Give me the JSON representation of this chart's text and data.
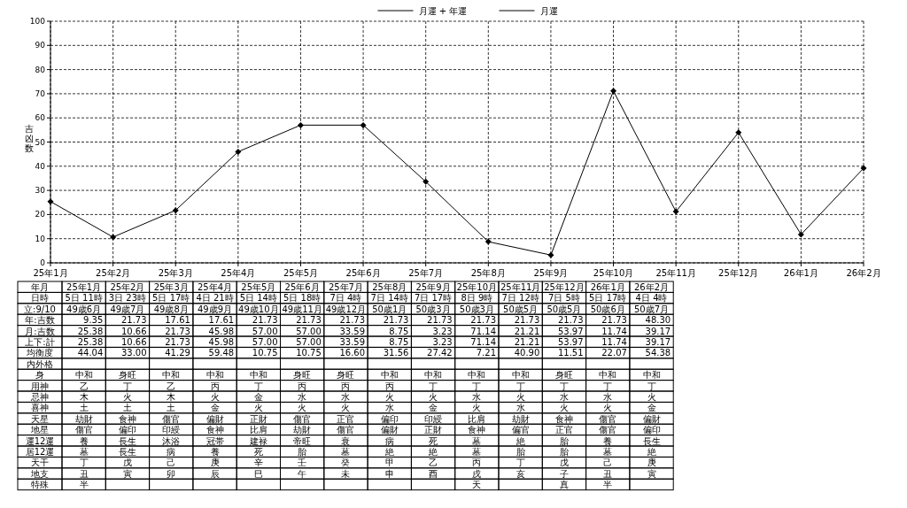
{
  "chart_data": {
    "type": "line",
    "ylabel": "吉凶数",
    "categories": [
      "25年1月",
      "25年2月",
      "25年3月",
      "25年4月",
      "25年5月",
      "25年6月",
      "25年7月",
      "25年8月",
      "25年9月",
      "25年10月",
      "25年11月",
      "25年12月",
      "26年1月",
      "26年2月"
    ],
    "series": [
      {
        "name": "月運 + 年運",
        "color": "#000000",
        "values": [
          25.38,
          10.66,
          21.73,
          45.98,
          57.0,
          57.0,
          33.59,
          8.75,
          3.23,
          71.14,
          21.21,
          53.97,
          11.74,
          39.17
        ]
      },
      {
        "name": "月運",
        "color": "#000000",
        "values": [
          null,
          null,
          null,
          null,
          null,
          null,
          null,
          null,
          null,
          null,
          null,
          null,
          null,
          null
        ]
      }
    ],
    "ylim": [
      0,
      100
    ],
    "yticks": [
      0,
      10,
      20,
      30,
      40,
      50,
      60,
      70,
      80,
      90,
      100
    ],
    "grid": true,
    "legend": "top",
    "marker": "diamond",
    "line_style": "solid",
    "annotations": [
      "年月",
      "25年1月",
      "25年2月",
      "25年3月",
      "25年4月",
      "25年5月",
      "25年6月",
      "25年7月",
      "25年8月",
      "25年9月",
      "25年10月",
      "25年11月",
      "25年12月",
      "26年1月",
      "26年2月",
      "日時",
      "5日 11時",
      "3日 23時",
      "5日 17時",
      "4日 21時",
      "5日 14時",
      "5日 18時",
      "7日 4時",
      "7日 14時",
      "7日 17時",
      "8日 9時",
      "7日 12時",
      "7日 5時",
      "5日 17時",
      "4日 4時",
      "立:9/10",
      "49歳6月",
      "49歳7月",
      "49歳8月",
      "49歳9月",
      "49歳10月",
      "49歳11月",
      "49歳12月",
      "50歳1月",
      "50歳3月",
      "50歳3月",
      "50歳5月",
      "50歳5月",
      "50歳6月",
      "50歳7月",
      "年:吉数",
      "9.35",
      "21.73",
      "17.61",
      "17.61",
      "21.73",
      "21.73",
      "21.73",
      "21.73",
      "21.73",
      "21.73",
      "21.73",
      "21.73",
      "21.73",
      "48.30",
      "月:吉数",
      "25.38",
      "10.66",
      "21.73",
      "45.98",
      "57.00",
      "57.00",
      "33.59",
      "8.75",
      "3.23",
      "71.14",
      "21.21",
      "53.97",
      "11.74",
      "39.17",
      "上下:計",
      "25.38",
      "10.66",
      "21.73",
      "45.98",
      "57.00",
      "57.00",
      "33.59",
      "8.75",
      "3.23",
      "71.14",
      "21.21",
      "53.97",
      "11.74",
      "39.17",
      "均衡度",
      "44.04",
      "33.00",
      "41.29",
      "59.48",
      "10.75",
      "10.75",
      "16.60",
      "31.56",
      "27.42",
      "7.21",
      "40.90",
      "11.51",
      "22.07",
      "54.38",
      "内外格",
      "身",
      "中和",
      "身旺",
      "中和",
      "中和",
      "中和",
      "身旺",
      "身旺",
      "中和",
      "中和",
      "中和",
      "中和",
      "身旺",
      "中和",
      "中和",
      "用神",
      "乙",
      "丁",
      "乙",
      "丙",
      "丁",
      "丙",
      "丙",
      "丙",
      "丁",
      "丁",
      "丁",
      "丁",
      "丁",
      "丁",
      "忌神",
      "木",
      "火",
      "木",
      "火",
      "金",
      "水",
      "水",
      "火",
      "火",
      "水",
      "火",
      "水",
      "水",
      "火",
      "喜神",
      "土",
      "土",
      "土",
      "金",
      "火",
      "火",
      "火",
      "水",
      "金",
      "火",
      "水",
      "火",
      "火",
      "金",
      "天星",
      "劫財",
      "食神",
      "傷官",
      "偏財",
      "正財",
      "傷官",
      "正官",
      "偏印",
      "印綬",
      "比肩",
      "劫財",
      "食神",
      "傷官",
      "偏財",
      "地星",
      "傷官",
      "偏印",
      "印綬",
      "食神",
      "比肩",
      "劫財",
      "傷官",
      "偏財",
      "正財",
      "食神",
      "偏官",
      "正官",
      "傷官",
      "偏印",
      "運12運",
      "養",
      "長生",
      "沐浴",
      "冠帯",
      "建禄",
      "帝旺",
      "衰",
      "病",
      "死",
      "墓",
      "絶",
      "胎",
      "養",
      "長生",
      "居12運",
      "墓",
      "長生",
      "病",
      "養",
      "死",
      "胎",
      "墓",
      "絶",
      "絶",
      "墓",
      "胎",
      "胎",
      "墓",
      "絶",
      "天干",
      "丁",
      "戊",
      "己",
      "庚",
      "辛",
      "壬",
      "癸",
      "甲",
      "乙",
      "丙",
      "丁",
      "戊",
      "己",
      "庚",
      "地支",
      "丑",
      "寅",
      "卯",
      "辰",
      "巳",
      "午",
      "未",
      "申",
      "酉",
      "戌",
      "亥",
      "子",
      "丑",
      "寅",
      "特殊",
      "半",
      "天",
      "真",
      "半"
    ]
  }
}
